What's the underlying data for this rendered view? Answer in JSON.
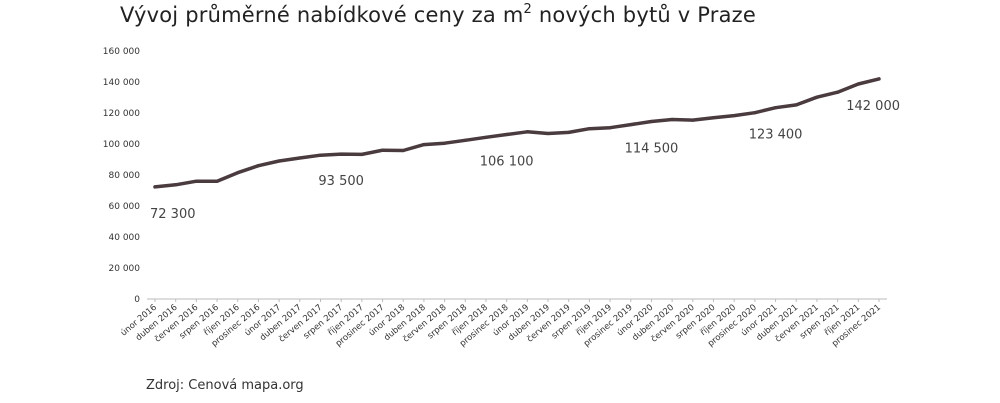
{
  "title": {
    "main": "Vývoj průměrné nabídkové ceny za m",
    "sup": "2",
    "rest": " nových bytů v Praze"
  },
  "source": "Zdroj: Cenová mapa.org",
  "colors": {
    "line": "#4a3b3f",
    "axis": "#bbbbbb",
    "text": "#333333"
  },
  "chart_data": {
    "type": "line",
    "title": "Vývoj průměrné nabídkové ceny za m2 nových bytů v Praze",
    "xlabel": "",
    "ylabel": "",
    "ylim": [
      0,
      160000
    ],
    "yticks": [
      {
        "value": 0,
        "label": "0"
      },
      {
        "value": 20000,
        "label": "20 000"
      },
      {
        "value": 40000,
        "label": "40 000"
      },
      {
        "value": 60000,
        "label": "60 000"
      },
      {
        "value": 80000,
        "label": "80 000"
      },
      {
        "value": 100000,
        "label": "100 000"
      },
      {
        "value": 120000,
        "label": "120 000"
      },
      {
        "value": 140000,
        "label": "140 000"
      },
      {
        "value": 160000,
        "label": "160 000"
      }
    ],
    "grid": false,
    "categories": [
      "únor 2016",
      "duben 2016",
      "červen 2016",
      "srpen 2016",
      "říjen 2016",
      "prosinec 2016",
      "únor 2017",
      "duben 2017",
      "červen 2017",
      "srpen 2017",
      "říjen 2017",
      "prosinec 2017",
      "únor 2018",
      "duben 2018",
      "červen 2018",
      "srpen 2018",
      "říjen 2018",
      "prosinec 2018",
      "únor 2019",
      "duben 2019",
      "červen 2019",
      "srpen 2019",
      "říjen 2019",
      "prosinec 2019",
      "únor 2020",
      "duben 2020",
      "červen 2020",
      "srpen 2020",
      "říjen 2020",
      "prosinec 2020",
      "únor 2021",
      "duben 2021",
      "červen 2021",
      "srpen 2021",
      "říjen 2021",
      "prosinec 2021"
    ],
    "series": [
      {
        "values": [
          72300,
          73700,
          76000,
          76000,
          81500,
          86000,
          89000,
          91000,
          92800,
          93500,
          93300,
          96000,
          95800,
          99600,
          100500,
          102400,
          104300,
          106100,
          107900,
          106800,
          107500,
          109900,
          110500,
          112500,
          114500,
          115800,
          115400,
          117000,
          118300,
          120200,
          123400,
          125200,
          130200,
          133400,
          138700,
          142000
        ]
      }
    ],
    "annotations": [
      {
        "index": 0,
        "label": "72 300"
      },
      {
        "index": 9,
        "label": "93 500"
      },
      {
        "index": 17,
        "label": "106 100"
      },
      {
        "index": 24,
        "label": "114 500"
      },
      {
        "index": 30,
        "label": "123 400"
      },
      {
        "index": 35,
        "label": "142 000"
      }
    ]
  }
}
